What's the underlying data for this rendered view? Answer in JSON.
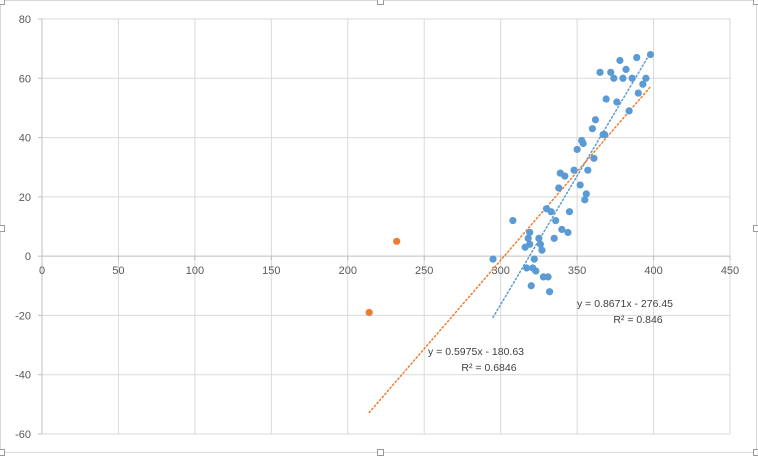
{
  "chart_data": {
    "type": "scatter",
    "title": "",
    "xlabel": "",
    "ylabel": "",
    "xlim": [
      0,
      450
    ],
    "ylim": [
      -60,
      80
    ],
    "x_ticks": [
      0,
      50,
      100,
      150,
      200,
      250,
      300,
      350,
      400,
      450
    ],
    "y_ticks": [
      -60,
      -40,
      -20,
      0,
      20,
      40,
      60,
      80
    ],
    "x_tick_labels": [
      "0",
      "50",
      "100",
      "150",
      "200",
      "250",
      "300",
      "350",
      "400",
      "450"
    ],
    "y_tick_labels": [
      "-60",
      "-40",
      "-20",
      "0",
      "20",
      "40",
      "60",
      "80"
    ],
    "grid": true,
    "legend": "none",
    "series": [
      {
        "color": "#5b9bd5",
        "points": [
          [
            295,
            -1
          ],
          [
            308,
            12
          ],
          [
            316,
            3
          ],
          [
            317,
            -4
          ],
          [
            318,
            6
          ],
          [
            319,
            8
          ],
          [
            319,
            4
          ],
          [
            320,
            -10
          ],
          [
            321,
            -4
          ],
          [
            322,
            -1
          ],
          [
            323,
            -5
          ],
          [
            325,
            6
          ],
          [
            326,
            4
          ],
          [
            327,
            2
          ],
          [
            328,
            -7
          ],
          [
            330,
            16
          ],
          [
            331,
            -7
          ],
          [
            332,
            -12
          ],
          [
            333,
            15
          ],
          [
            335,
            6
          ],
          [
            336,
            12
          ],
          [
            338,
            23
          ],
          [
            339,
            28
          ],
          [
            340,
            9
          ],
          [
            342,
            27
          ],
          [
            344,
            8
          ],
          [
            345,
            15
          ],
          [
            348,
            29
          ],
          [
            350,
            36
          ],
          [
            352,
            24
          ],
          [
            353,
            39
          ],
          [
            354,
            38
          ],
          [
            355,
            19
          ],
          [
            356,
            21
          ],
          [
            357,
            29
          ],
          [
            360,
            43
          ],
          [
            361,
            33
          ],
          [
            362,
            46
          ],
          [
            365,
            62
          ],
          [
            367,
            41
          ],
          [
            368,
            41
          ],
          [
            369,
            53
          ],
          [
            372,
            62
          ],
          [
            374,
            60
          ],
          [
            376,
            52
          ],
          [
            378,
            66
          ],
          [
            380,
            60
          ],
          [
            382,
            63
          ],
          [
            384,
            49
          ],
          [
            386,
            60
          ],
          [
            389,
            67
          ],
          [
            390,
            55
          ],
          [
            393,
            58
          ],
          [
            395,
            60
          ],
          [
            398,
            68
          ]
        ],
        "trendline": {
          "type": "linear",
          "slope": 0.8671,
          "intercept": -276.45,
          "x_range": [
            295,
            398
          ],
          "equation": "y = 0.8671x - 276.45",
          "r2": "R² = 0.846"
        }
      },
      {
        "color": "#ed7d31",
        "points": [
          [
            214,
            -19
          ],
          [
            232,
            5
          ]
        ],
        "trendline": {
          "type": "linear",
          "slope": 0.5975,
          "intercept": -180.63,
          "x_range": [
            214,
            398
          ],
          "equation": "y = 0.5975x - 180.63",
          "r2": "R² = 0.6846"
        }
      }
    ]
  }
}
